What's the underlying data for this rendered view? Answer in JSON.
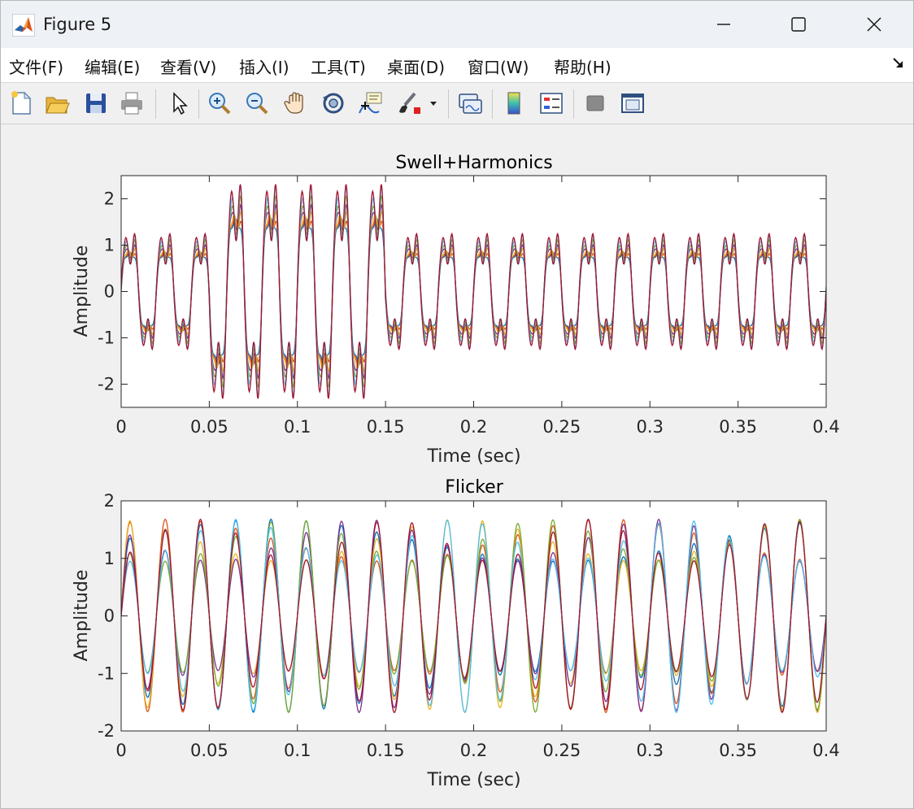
{
  "window": {
    "title": "Figure 5"
  },
  "menu": [
    {
      "label": "文件(F)"
    },
    {
      "label": "编辑(E)"
    },
    {
      "label": "查看(V)"
    },
    {
      "label": "插入(I)"
    },
    {
      "label": "工具(T)"
    },
    {
      "label": "桌面(D)"
    },
    {
      "label": "窗口(W)"
    },
    {
      "label": "帮助(H)"
    }
  ],
  "toolbar": {
    "icons": [
      "new-figure-icon",
      "open-file-icon",
      "save-icon",
      "print-icon",
      "pointer-icon",
      "zoom-in-icon",
      "zoom-out-icon",
      "pan-hand-icon",
      "rotate-3d-icon",
      "data-cursor-icon",
      "brush-icon",
      "link-plot-icon",
      "colorbar-icon",
      "legend-icon",
      "hide-plot-tools-icon",
      "show-plot-tools-icon"
    ]
  },
  "colors": {
    "series": [
      "#0072BD",
      "#D95319",
      "#EDB120",
      "#7E2F8E",
      "#77AC30",
      "#4DBEEE",
      "#A2142F"
    ]
  },
  "chart_data": [
    {
      "type": "line",
      "title": "Swell+Harmonics",
      "xlabel": "Time (sec)",
      "ylabel": "Amplitude",
      "xlim": [
        0,
        0.4
      ],
      "ylim": [
        -2.5,
        2.5
      ],
      "xticks": [
        0,
        0.05,
        0.1,
        0.15,
        0.2,
        0.25,
        0.3,
        0.35,
        0.4
      ],
      "xtick_labels": [
        "0",
        "0.05",
        "0.1",
        "0.15",
        "0.2",
        "0.25",
        "0.3",
        "0.35",
        "0.4"
      ],
      "yticks": [
        -2,
        -1,
        0,
        1,
        2
      ],
      "ytick_labels": [
        "-2",
        "-1",
        "0",
        "1",
        "2"
      ],
      "fundamental_hz": 50,
      "swell_interval_sec": [
        0.05,
        0.15
      ],
      "peak_normal": 1.4,
      "peak_swell": 2.6,
      "grid": false,
      "series_count": 7
    },
    {
      "type": "line",
      "title": "Flicker",
      "xlabel": "Time (sec)",
      "ylabel": "Amplitude",
      "xlim": [
        0,
        0.4
      ],
      "ylim": [
        -2,
        2
      ],
      "xticks": [
        0,
        0.05,
        0.1,
        0.15,
        0.2,
        0.25,
        0.3,
        0.35,
        0.4
      ],
      "xtick_labels": [
        "0",
        "0.05",
        "0.1",
        "0.15",
        "0.2",
        "0.25",
        "0.3",
        "0.35",
        "0.4"
      ],
      "yticks": [
        -2,
        -1,
        0,
        1,
        2
      ],
      "ytick_labels": [
        "-2",
        "-1",
        "0",
        "1",
        "2"
      ],
      "fundamental_hz": 50,
      "peak_min": 0.95,
      "peak_max": 1.68,
      "grid": false,
      "series_count": 7
    }
  ]
}
